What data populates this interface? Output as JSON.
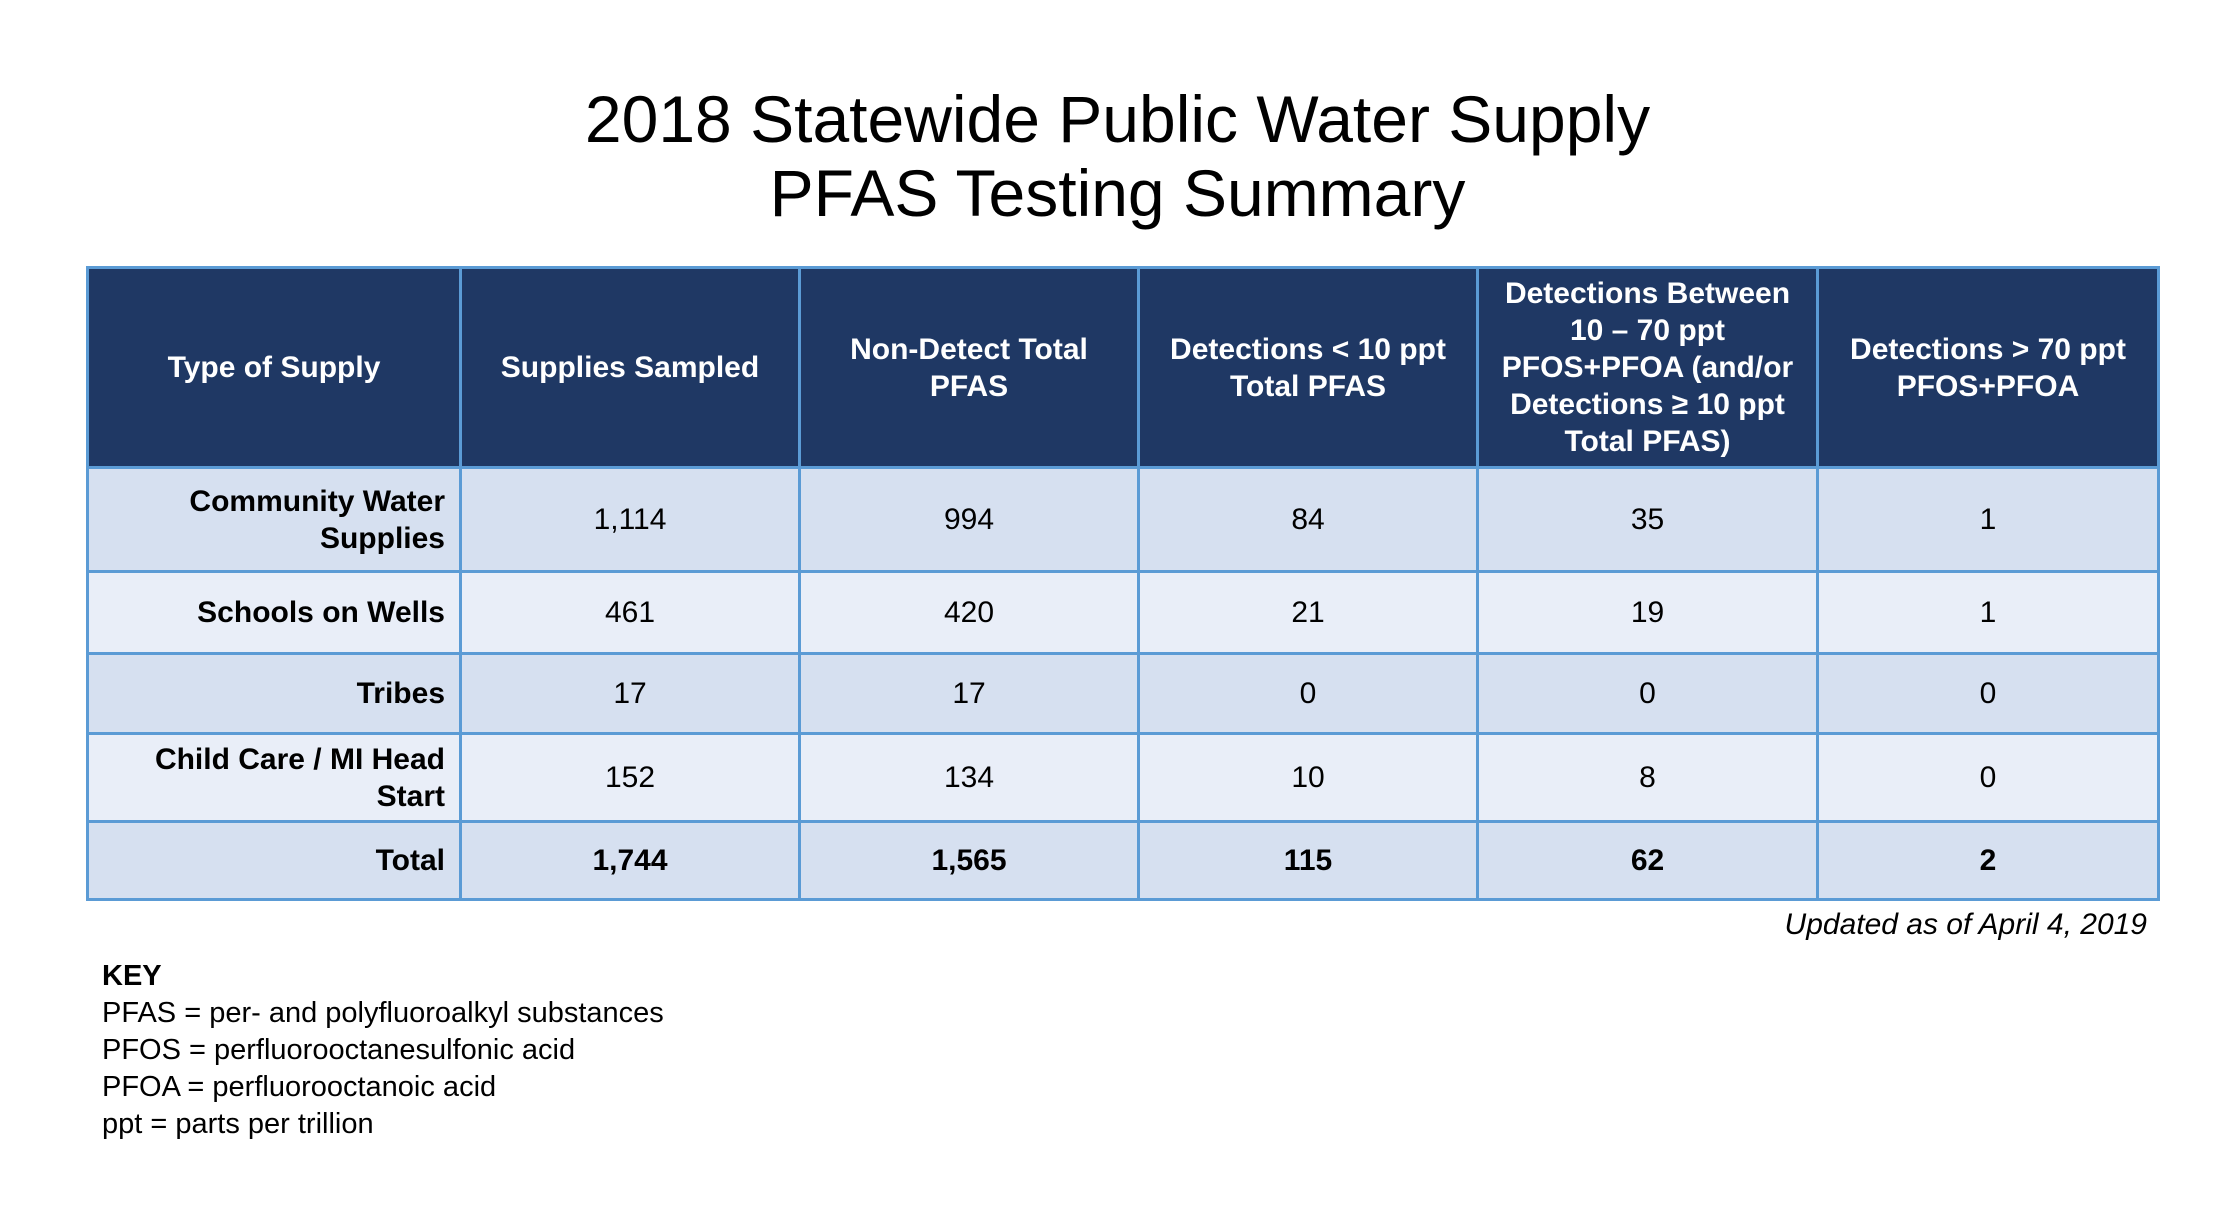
{
  "title": {
    "line1": "2018 Statewide Public Water Supply",
    "line2": "PFAS Testing Summary"
  },
  "table": {
    "headers": [
      "Type of Supply",
      "Supplies Sampled",
      "Non-Detect Total PFAS",
      "Detections < 10 ppt Total PFAS",
      "Detections Between 10 – 70 ppt PFOS+PFOA (and/or Detections ≥ 10 ppt Total PFAS)",
      "Detections > 70 ppt PFOS+PFOA"
    ],
    "rows": [
      {
        "type": "Community Water Supplies",
        "sampled": "1,114",
        "non_detect": "994",
        "lt10": "84",
        "between": "35",
        "gt70": "1"
      },
      {
        "type": "Schools on Wells",
        "sampled": "461",
        "non_detect": "420",
        "lt10": "21",
        "between": "19",
        "gt70": "1"
      },
      {
        "type": "Tribes",
        "sampled": "17",
        "non_detect": "17",
        "lt10": "0",
        "between": "0",
        "gt70": "0"
      },
      {
        "type": "Child Care / MI Head Start",
        "sampled": "152",
        "non_detect": "134",
        "lt10": "10",
        "between": "8",
        "gt70": "0"
      }
    ],
    "total": {
      "type": "Total",
      "sampled": "1,744",
      "non_detect": "1,565",
      "lt10": "115",
      "between": "62",
      "gt70": "2"
    }
  },
  "updated": "Updated as of April 4, 2019",
  "key": {
    "title": "KEY",
    "items": [
      "PFAS = per- and polyfluoroalkyl substances",
      "PFOS = perfluorooctanesulfonic acid",
      "PFOA = perfluorooctanoic acid",
      "ppt = parts per trillion"
    ]
  },
  "colors": {
    "header_bg": "#1f3864",
    "border": "#5b9bd5",
    "row_dark": "#d6e0f0",
    "row_light": "#e9eef8"
  }
}
